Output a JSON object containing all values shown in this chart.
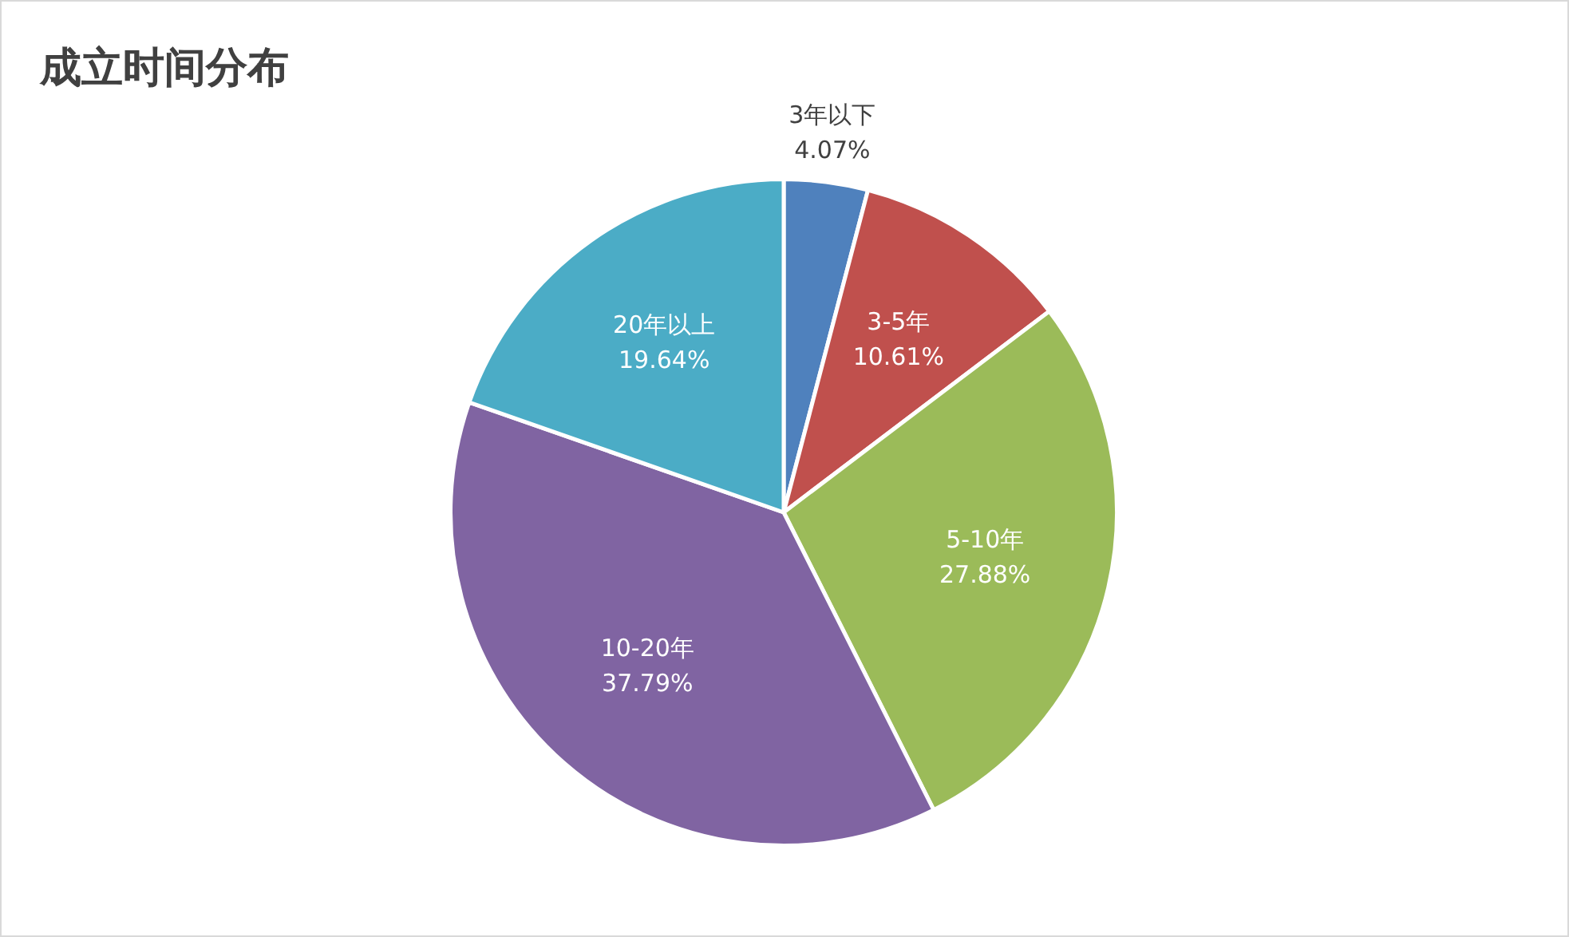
{
  "chart_data": {
    "type": "pie",
    "title": "成立时间分布",
    "categories": [
      "3年以下",
      "3-5年",
      "5-10年",
      "10-20年",
      "20年以上"
    ],
    "values": [
      4.07,
      10.61,
      27.88,
      37.79,
      19.64
    ],
    "colors": [
      "#4f81bd",
      "#c0504d",
      "#9bbb59",
      "#8064a2",
      "#4bacc6"
    ],
    "value_labels": [
      "4.07%",
      "10.61%",
      "27.88%",
      "37.79%",
      "19.64%"
    ],
    "legend": false
  }
}
